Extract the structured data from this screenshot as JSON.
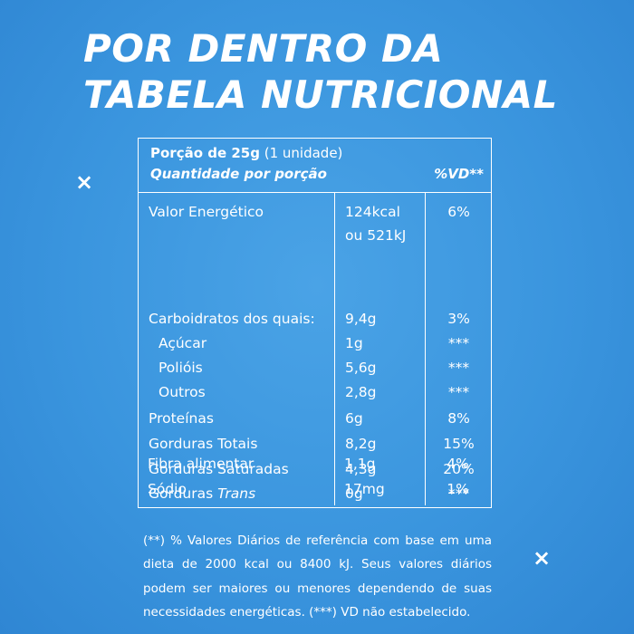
{
  "title": {
    "line1": "POR DENTRO DA",
    "line2": "TABELA NUTRICIONAL"
  },
  "decor": {
    "x1": "×",
    "x2": "×"
  },
  "table": {
    "portion_bold": "Porção de 25g",
    "portion_rest": " (1 unidade)",
    "qty_label": "Quantidade por porção",
    "vd_label": "%VD**",
    "rows": [
      {
        "name": "Valor Energético",
        "value1": "124kcal",
        "value2": "ou 521kJ",
        "vd": "6%"
      },
      {
        "name": "Carboidratos dos quais:",
        "value": "9,4g",
        "vd": "3%"
      },
      {
        "name": "Açúcar",
        "value": "1g",
        "vd": "***"
      },
      {
        "name": "Polióis",
        "value": "5,6g",
        "vd": "***"
      },
      {
        "name": "Outros",
        "value": "2,8g",
        "vd": "***"
      },
      {
        "name": "Proteínas",
        "value": "6g",
        "vd": "8%"
      },
      {
        "name": "Gorduras Totais",
        "value": "8,2g",
        "vd": "15%"
      },
      {
        "name": "Gorduras Saturadas",
        "value": "4,3g",
        "vd": "20%"
      },
      {
        "name": "Gorduras ",
        "name_italic": "Trans",
        "value": "0g",
        "vd": "***"
      },
      {
        "name": "Fibra alimentar",
        "value": "1,1g",
        "vd": "4%"
      },
      {
        "name": "Sódio",
        "value": "17mg",
        "vd": "1%"
      }
    ]
  },
  "footnote": "(**) % Valores Diários de referência com base em uma dieta de 2000 kcal ou 8400 kJ. Seus valores diários podem ser maiores ou menores dependendo de suas necessidades energéticas. (***) VD não estabelecido."
}
